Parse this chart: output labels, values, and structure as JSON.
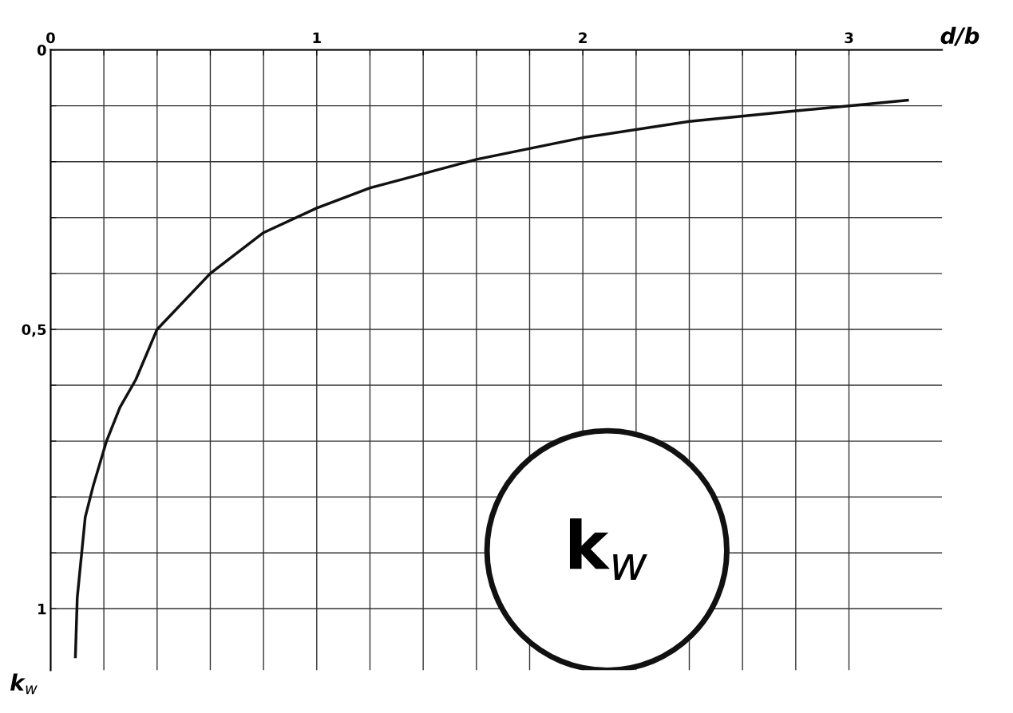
{
  "chart_data": {
    "type": "line",
    "xlabel": "d/b",
    "ylabel": "k$_{w}$",
    "series": [
      {
        "color": "#111111",
        "x": [
          0.093,
          0.1,
          0.13,
          0.16,
          0.21,
          0.26,
          0.32,
          0.4,
          0.6,
          0.8,
          1.0,
          1.2,
          1.6,
          2.0,
          2.4,
          2.8,
          3.0,
          3.22
        ],
        "values": [
          1.086,
          0.98,
          0.836,
          0.78,
          0.7,
          0.64,
          0.59,
          0.5,
          0.4,
          0.327,
          0.283,
          0.247,
          0.196,
          0.157,
          0.128,
          0.109,
          0.1,
          0.09
        ]
      }
    ],
    "xlim": [
      0,
      3.35
    ],
    "ylim": [
      1.11,
      0
    ],
    "xticks": [
      0,
      {
        "value": 0.2,
        "label": null
      },
      {
        "value": 0.4,
        "label": null
      },
      {
        "value": 0.6,
        "label": null
      },
      {
        "value": 0.8,
        "label": null
      },
      1,
      {
        "value": 1.2,
        "label": null
      },
      {
        "value": 1.4,
        "label": null
      },
      {
        "value": 1.6,
        "label": null
      },
      {
        "value": 1.8,
        "label": null
      },
      2,
      {
        "value": 2.2,
        "label": null
      },
      {
        "value": 2.4,
        "label": null
      },
      {
        "value": 2.6,
        "label": null
      },
      {
        "value": 2.8,
        "label": null
      },
      3
    ],
    "yticks": [
      0,
      {
        "value": 0.1,
        "label": null
      },
      {
        "value": 0.2,
        "label": null
      },
      {
        "value": 0.3,
        "label": null
      },
      {
        "value": 0.4,
        "label": null
      },
      {
        "value": 0.5,
        "label": "0,5"
      },
      {
        "value": 0.6,
        "label": null
      },
      {
        "value": 0.7,
        "label": null
      },
      {
        "value": 0.8,
        "label": null
      },
      {
        "value": 0.9,
        "label": null
      },
      1
    ],
    "grid": true,
    "marker": "none",
    "line_style": "solid",
    "annotations": [
      "k$_{w}$"
    ]
  }
}
